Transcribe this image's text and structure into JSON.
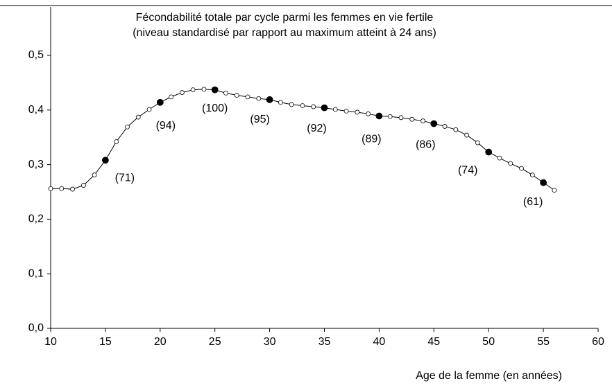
{
  "chart_data": {
    "type": "line",
    "title": "Fécondabilité totale par cycle parmi les femmes en vie fertile",
    "subtitle": "(niveau standardisé par rapport au maximum atteint à 24 ans)",
    "x_label": "Age de la femme (en années)",
    "x": [
      10,
      11,
      12,
      13,
      14,
      15,
      16,
      17,
      18,
      19,
      20,
      21,
      22,
      23,
      24,
      25,
      26,
      27,
      28,
      29,
      30,
      31,
      32,
      33,
      34,
      35,
      36,
      37,
      38,
      39,
      40,
      41,
      42,
      43,
      44,
      45,
      46,
      47,
      48,
      49,
      50,
      51,
      52,
      53,
      54,
      55,
      56
    ],
    "series": [
      {
        "color": "#000000",
        "values": [
          0.256,
          0.256,
          0.255,
          0.262,
          0.281,
          0.308,
          0.342,
          0.369,
          0.387,
          0.401,
          0.414,
          0.424,
          0.432,
          0.437,
          0.438,
          0.437,
          0.431,
          0.427,
          0.424,
          0.421,
          0.419,
          0.414,
          0.41,
          0.408,
          0.406,
          0.404,
          0.401,
          0.398,
          0.396,
          0.393,
          0.389,
          0.388,
          0.386,
          0.383,
          0.38,
          0.375,
          0.37,
          0.364,
          0.354,
          0.34,
          0.323,
          0.312,
          0.302,
          0.293,
          0.281,
          0.267,
          0.253
        ]
      }
    ],
    "annotations": [
      {
        "x": 15,
        "label": "(71)"
      },
      {
        "x": 20,
        "label": "(94)"
      },
      {
        "x": 25,
        "label": "(100)"
      },
      {
        "x": 30,
        "label": "(95)"
      },
      {
        "x": 35,
        "label": "(92)"
      },
      {
        "x": 40,
        "label": "(89)"
      },
      {
        "x": 45,
        "label": "(86)"
      },
      {
        "x": 50,
        "label": "(74)"
      },
      {
        "x": 55,
        "label": "(61)"
      }
    ],
    "xlim": [
      10,
      60
    ],
    "xticks": [
      10,
      15,
      20,
      25,
      30,
      35,
      40,
      45,
      50,
      55,
      60
    ],
    "ylim": [
      0,
      0.5
    ],
    "yticks": [
      {
        "value": 0,
        "label": "0,0"
      },
      {
        "value": 0.1,
        "label": "0,1"
      },
      {
        "value": 0.2,
        "label": "0,2"
      },
      {
        "value": 0.3,
        "label": "0,3"
      },
      {
        "value": 0.4,
        "label": "0,4"
      },
      {
        "value": 0.5,
        "label": "0,5"
      }
    ]
  }
}
